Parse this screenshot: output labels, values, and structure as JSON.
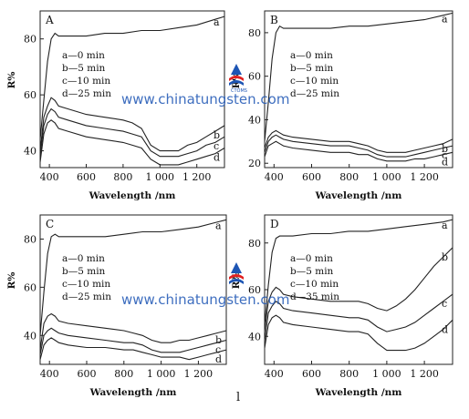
{
  "chart_data": [
    {
      "type": "line",
      "panel": "A",
      "xlabel": "Wavelength /nm",
      "ylabel": "R%",
      "xlim": [
        350,
        1350
      ],
      "ylim": [
        34,
        90
      ],
      "xticks": [
        "400",
        "600",
        "800",
        "1 000",
        "1 200"
      ],
      "yticks": [
        "40",
        "60",
        "80"
      ],
      "legend": [
        "a—0 min",
        "b—5 min",
        "c—10 min",
        "d—25 min"
      ],
      "series": [
        {
          "name": "a",
          "x": [
            350,
            370,
            390,
            410,
            430,
            450,
            500,
            600,
            700,
            800,
            900,
            1000,
            1100,
            1200,
            1300,
            1350
          ],
          "y": [
            44,
            58,
            72,
            80,
            82,
            81,
            81,
            81,
            82,
            82,
            83,
            83,
            84,
            85,
            87,
            88
          ]
        },
        {
          "name": "b",
          "x": [
            350,
            370,
            390,
            410,
            430,
            450,
            500,
            600,
            700,
            800,
            850,
            900,
            950,
            1000,
            1050,
            1100,
            1150,
            1200,
            1250,
            1300,
            1350
          ],
          "y": [
            40,
            52,
            56,
            59,
            58,
            56,
            55,
            53,
            52,
            51,
            50,
            48,
            42,
            40,
            40,
            40,
            42,
            43,
            45,
            47,
            49
          ]
        },
        {
          "name": "c",
          "x": [
            350,
            370,
            390,
            410,
            430,
            450,
            500,
            600,
            700,
            800,
            850,
            900,
            950,
            1000,
            1050,
            1100,
            1150,
            1200,
            1250,
            1300,
            1350
          ],
          "y": [
            38,
            49,
            53,
            55,
            54,
            52,
            51,
            49,
            48,
            47,
            46,
            45,
            40,
            38,
            38,
            38,
            39,
            40,
            42,
            43,
            45
          ]
        },
        {
          "name": "d",
          "x": [
            350,
            370,
            390,
            410,
            430,
            450,
            500,
            600,
            700,
            800,
            850,
            900,
            950,
            1000,
            1050,
            1100,
            1150,
            1200,
            1250,
            1300,
            1350
          ],
          "y": [
            36,
            46,
            50,
            51,
            50,
            48,
            47,
            45,
            44,
            43,
            42,
            41,
            37,
            35,
            35,
            35,
            36,
            37,
            38,
            39,
            41
          ]
        }
      ]
    },
    {
      "type": "line",
      "panel": "B",
      "xlabel": "Wavelength /nm",
      "ylabel": "R%",
      "xlim": [
        350,
        1350
      ],
      "ylim": [
        18,
        90
      ],
      "xticks": [
        "400",
        "600",
        "800",
        "1 000",
        "1 200"
      ],
      "yticks": [
        "20",
        "40",
        "60",
        "80"
      ],
      "legend": [
        "a—0 min",
        "b—5 min",
        "c—10 min",
        "d—25 min"
      ],
      "series": [
        {
          "name": "a",
          "x": [
            350,
            370,
            390,
            410,
            430,
            450,
            500,
            600,
            700,
            800,
            900,
            1000,
            1100,
            1200,
            1300,
            1350
          ],
          "y": [
            30,
            48,
            68,
            80,
            83,
            82,
            82,
            82,
            82,
            83,
            83,
            84,
            85,
            86,
            88,
            89
          ]
        },
        {
          "name": "b",
          "x": [
            350,
            370,
            390,
            410,
            430,
            450,
            500,
            600,
            700,
            800,
            850,
            900,
            950,
            1000,
            1050,
            1100,
            1150,
            1200,
            1250,
            1300,
            1350
          ],
          "y": [
            27,
            32,
            34,
            35,
            34,
            33,
            32,
            31,
            30,
            30,
            29,
            28,
            26,
            25,
            25,
            25,
            26,
            27,
            28,
            29,
            31
          ]
        },
        {
          "name": "c",
          "x": [
            350,
            370,
            390,
            410,
            430,
            450,
            500,
            600,
            700,
            800,
            850,
            900,
            950,
            1000,
            1050,
            1100,
            1150,
            1200,
            1250,
            1300,
            1350
          ],
          "y": [
            25,
            30,
            32,
            33,
            32,
            31,
            30,
            29,
            28,
            28,
            27,
            26,
            24,
            23,
            23,
            23,
            24,
            25,
            26,
            27,
            28
          ]
        },
        {
          "name": "d",
          "x": [
            350,
            370,
            390,
            410,
            430,
            450,
            500,
            600,
            700,
            800,
            850,
            900,
            950,
            1000,
            1050,
            1100,
            1150,
            1200,
            1250,
            1300,
            1350
          ],
          "y": [
            23,
            28,
            29,
            30,
            29,
            28,
            27,
            26,
            25,
            25,
            24,
            24,
            22,
            21,
            21,
            21,
            22,
            22,
            23,
            24,
            25
          ]
        }
      ]
    },
    {
      "type": "line",
      "panel": "C",
      "xlabel": "Wavelength /nm",
      "ylabel": "R%",
      "xlim": [
        350,
        1350
      ],
      "ylim": [
        28,
        90
      ],
      "xticks": [
        "400",
        "600",
        "800",
        "1 000",
        "1 200"
      ],
      "yticks": [
        "40",
        "60",
        "80"
      ],
      "legend": [
        "a—0 min",
        "b—5 min",
        "c—10 min",
        "d—25 min"
      ],
      "series": [
        {
          "name": "a",
          "x": [
            350,
            370,
            390,
            410,
            430,
            450,
            500,
            600,
            700,
            800,
            900,
            1000,
            1100,
            1200,
            1300,
            1350
          ],
          "y": [
            40,
            58,
            74,
            81,
            82,
            81,
            81,
            81,
            81,
            82,
            83,
            83,
            84,
            85,
            87,
            88
          ]
        },
        {
          "name": "b",
          "x": [
            350,
            370,
            390,
            410,
            430,
            450,
            500,
            600,
            700,
            800,
            850,
            900,
            950,
            1000,
            1050,
            1100,
            1150,
            1200,
            1250,
            1300,
            1350
          ],
          "y": [
            34,
            45,
            48,
            49,
            48,
            46,
            45,
            44,
            43,
            42,
            41,
            40,
            38,
            37,
            37,
            38,
            38,
            39,
            40,
            41,
            42
          ]
        },
        {
          "name": "c",
          "x": [
            350,
            370,
            390,
            410,
            430,
            450,
            500,
            600,
            700,
            800,
            850,
            900,
            950,
            1000,
            1050,
            1100,
            1150,
            1200,
            1250,
            1300,
            1350
          ],
          "y": [
            32,
            40,
            42,
            43,
            42,
            41,
            40,
            39,
            38,
            37,
            37,
            36,
            34,
            33,
            33,
            33,
            34,
            35,
            36,
            37,
            38
          ]
        },
        {
          "name": "d",
          "x": [
            350,
            370,
            390,
            410,
            430,
            450,
            500,
            600,
            700,
            800,
            850,
            900,
            950,
            1000,
            1050,
            1100,
            1150,
            1200,
            1250,
            1300,
            1350
          ],
          "y": [
            30,
            36,
            38,
            39,
            38,
            37,
            36,
            35,
            35,
            34,
            34,
            33,
            32,
            31,
            31,
            31,
            30,
            31,
            32,
            33,
            34
          ]
        }
      ]
    },
    {
      "type": "line",
      "panel": "D",
      "xlabel": "Wavelength /nm",
      "ylabel": "R%",
      "xlim": [
        350,
        1350
      ],
      "ylim": [
        28,
        92
      ],
      "xticks": [
        "400",
        "600",
        "800",
        "1 000",
        "1 200"
      ],
      "yticks": [
        "40",
        "60",
        "80"
      ],
      "legend": [
        "a—0 min",
        "b—5 min",
        "c—10 min",
        "d—35 min"
      ],
      "series": [
        {
          "name": "a",
          "x": [
            350,
            370,
            390,
            410,
            430,
            450,
            500,
            600,
            700,
            800,
            900,
            1000,
            1100,
            1200,
            1300,
            1350
          ],
          "y": [
            45,
            62,
            76,
            82,
            83,
            83,
            83,
            84,
            84,
            85,
            85,
            86,
            87,
            88,
            89,
            90
          ]
        },
        {
          "name": "b",
          "x": [
            350,
            370,
            390,
            410,
            430,
            450,
            500,
            600,
            700,
            800,
            850,
            900,
            950,
            1000,
            1050,
            1100,
            1150,
            1200,
            1250,
            1300,
            1350
          ],
          "y": [
            42,
            55,
            59,
            61,
            60,
            58,
            57,
            56,
            55,
            55,
            55,
            54,
            52,
            51,
            53,
            56,
            60,
            65,
            70,
            74,
            78
          ]
        },
        {
          "name": "c",
          "x": [
            350,
            370,
            390,
            410,
            430,
            450,
            500,
            600,
            700,
            800,
            850,
            900,
            950,
            1000,
            1050,
            1100,
            1150,
            1200,
            1250,
            1300,
            1350
          ],
          "y": [
            38,
            50,
            53,
            55,
            54,
            52,
            51,
            50,
            49,
            48,
            48,
            47,
            44,
            42,
            43,
            44,
            46,
            49,
            52,
            55,
            58
          ]
        },
        {
          "name": "d",
          "x": [
            350,
            370,
            390,
            410,
            430,
            450,
            500,
            600,
            700,
            800,
            850,
            900,
            950,
            1000,
            1050,
            1100,
            1150,
            1200,
            1250,
            1300,
            1350
          ],
          "y": [
            35,
            45,
            48,
            49,
            48,
            46,
            45,
            44,
            43,
            42,
            42,
            41,
            37,
            34,
            34,
            34,
            35,
            37,
            40,
            43,
            47
          ]
        }
      ]
    }
  ],
  "watermark": {
    "url_text": "www.chinatungsten.com",
    "logo_small_text": "CTOMS",
    "color": "#1d55b4"
  },
  "caption_mark": "l"
}
